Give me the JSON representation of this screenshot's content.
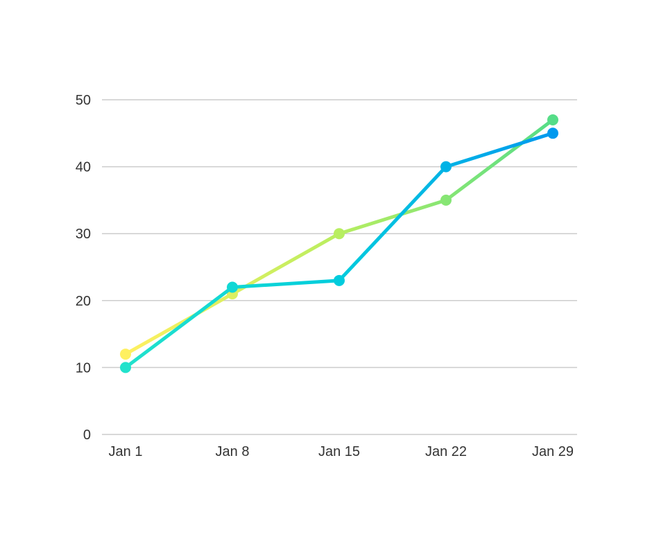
{
  "chart_data": {
    "type": "line",
    "title": "",
    "xlabel": "",
    "ylabel": "",
    "categories": [
      "Jan 1",
      "Jan 8",
      "Jan 15",
      "Jan 22",
      "Jan 29"
    ],
    "ylim": [
      0,
      50
    ],
    "yticks": [
      0,
      10,
      20,
      30,
      40,
      50
    ],
    "grid": true,
    "legend": "none",
    "series": [
      {
        "values": [
          12,
          21,
          30,
          35,
          47
        ],
        "gradient": [
          "#fff060",
          "#b8ee60",
          "#55dd88"
        ]
      },
      {
        "values": [
          10,
          22,
          23,
          40,
          45
        ],
        "gradient": [
          "#22e2cc",
          "#00ccdd",
          "#0099ee"
        ]
      }
    ]
  }
}
